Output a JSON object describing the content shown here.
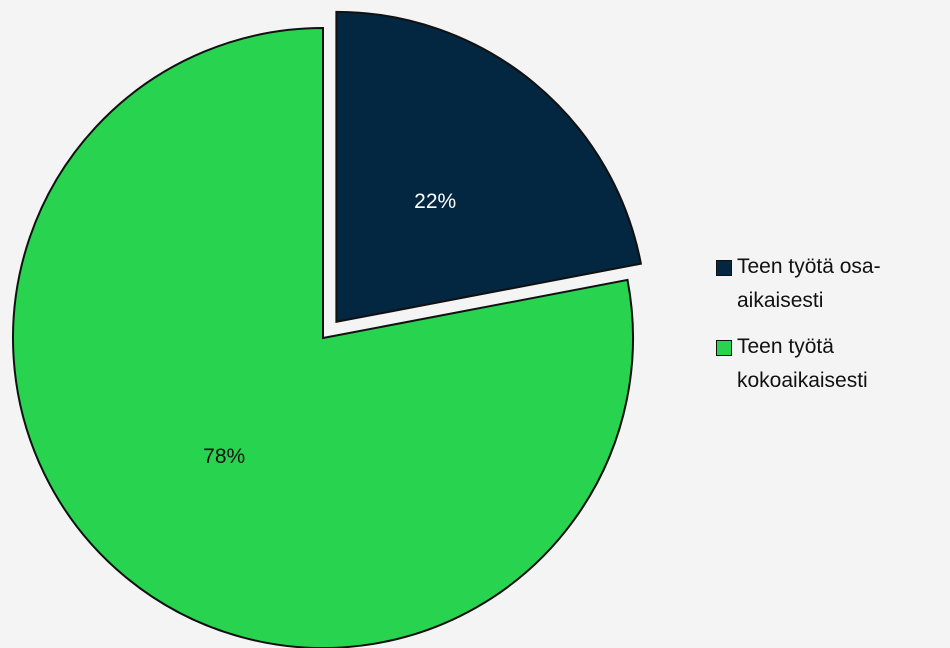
{
  "chart_data": {
    "type": "pie",
    "categories": [
      "Teen työtä osa-aikaisesti",
      "Teen työtä kokoaikaisesti"
    ],
    "values": [
      22,
      78
    ],
    "value_labels": [
      "22%",
      "78%"
    ],
    "colors": [
      "#032641",
      "#28d350"
    ],
    "legend": "right"
  }
}
